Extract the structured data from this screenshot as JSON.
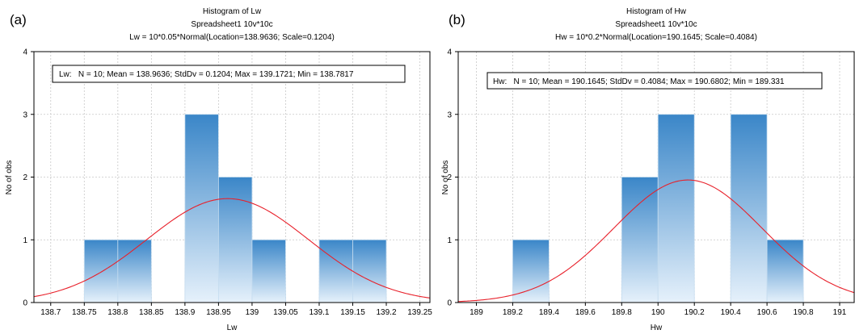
{
  "chart_data": [
    {
      "type": "bar",
      "panel_label": "(a)",
      "title": "Histogram of Lw",
      "subtitle": "Spreadsheet1 10v*10c",
      "fit_line": "Lw = 10*0.05*Normal(Location=138.9636; Scale=0.1204)",
      "stats_box": "Lw:   N = 10; Mean = 138.9636; StdDv = 0.1204; Max = 139.1721; Min = 138.7817",
      "xlabel": "Lw",
      "ylabel": "No of obs",
      "xlim": [
        138.675,
        139.265
      ],
      "ylim": [
        0,
        4
      ],
      "yticks": [
        0,
        1,
        2,
        3,
        4
      ],
      "xticks": [
        {
          "value": 138.7,
          "label": "138.7"
        },
        {
          "value": 138.75,
          "label": "138.75"
        },
        {
          "value": 138.8,
          "label": "138.8"
        },
        {
          "value": 138.85,
          "label": "138.85"
        },
        {
          "value": 138.9,
          "label": "138.9"
        },
        {
          "value": 138.95,
          "label": "138.95"
        },
        {
          "value": 139.0,
          "label": "139"
        },
        {
          "value": 139.05,
          "label": "139.05"
        },
        {
          "value": 139.1,
          "label": "139.1"
        },
        {
          "value": 139.15,
          "label": "139.15"
        },
        {
          "value": 139.2,
          "label": "139.2"
        },
        {
          "value": 139.25,
          "label": "139.25"
        }
      ],
      "bin_width": 0.05,
      "bins": [
        {
          "start": 138.75,
          "count": 1
        },
        {
          "start": 138.8,
          "count": 1
        },
        {
          "start": 138.9,
          "count": 3
        },
        {
          "start": 138.95,
          "count": 2
        },
        {
          "start": 139.0,
          "count": 1
        },
        {
          "start": 139.1,
          "count": 1
        },
        {
          "start": 139.15,
          "count": 1
        }
      ],
      "normal_fit": {
        "n": 10,
        "bin_width": 0.05,
        "location": 138.9636,
        "scale": 0.1204
      },
      "grid": true,
      "colors": {
        "bar_dark": "#3a86c8",
        "bar_light": "#e6f1fb",
        "curve": "#e8202a"
      }
    },
    {
      "type": "bar",
      "panel_label": "(b)",
      "title": "Histogram of Hw",
      "subtitle": "Spreadsheet1 10v*10c",
      "fit_line": "Hw = 10*0.2*Normal(Location=190.1645; Scale=0.4084)",
      "stats_box": "Hw:   N = 10; Mean = 190.1645; StdDv = 0.4084; Max = 190.6802; Min = 189.331",
      "xlabel": "Hw",
      "ylabel": "No of obs",
      "xlim": [
        188.9,
        191.08
      ],
      "ylim": [
        0,
        4
      ],
      "yticks": [
        0,
        1,
        2,
        3,
        4
      ],
      "xticks": [
        {
          "value": 189.0,
          "label": "189"
        },
        {
          "value": 189.2,
          "label": "189.2"
        },
        {
          "value": 189.4,
          "label": "189.4"
        },
        {
          "value": 189.6,
          "label": "189.6"
        },
        {
          "value": 189.8,
          "label": "189.8"
        },
        {
          "value": 190.0,
          "label": "190"
        },
        {
          "value": 190.2,
          "label": "190.2"
        },
        {
          "value": 190.4,
          "label": "190.4"
        },
        {
          "value": 190.6,
          "label": "190.6"
        },
        {
          "value": 190.8,
          "label": "190.8"
        },
        {
          "value": 191.0,
          "label": "191"
        }
      ],
      "bin_width": 0.2,
      "bins": [
        {
          "start": 189.2,
          "count": 1
        },
        {
          "start": 189.8,
          "count": 2
        },
        {
          "start": 190.0,
          "count": 3
        },
        {
          "start": 190.4,
          "count": 3
        },
        {
          "start": 190.6,
          "count": 1
        }
      ],
      "normal_fit": {
        "n": 10,
        "bin_width": 0.2,
        "location": 190.1645,
        "scale": 0.4084
      },
      "grid": true,
      "colors": {
        "bar_dark": "#3a86c8",
        "bar_light": "#e6f1fb",
        "curve": "#e8202a"
      }
    }
  ]
}
